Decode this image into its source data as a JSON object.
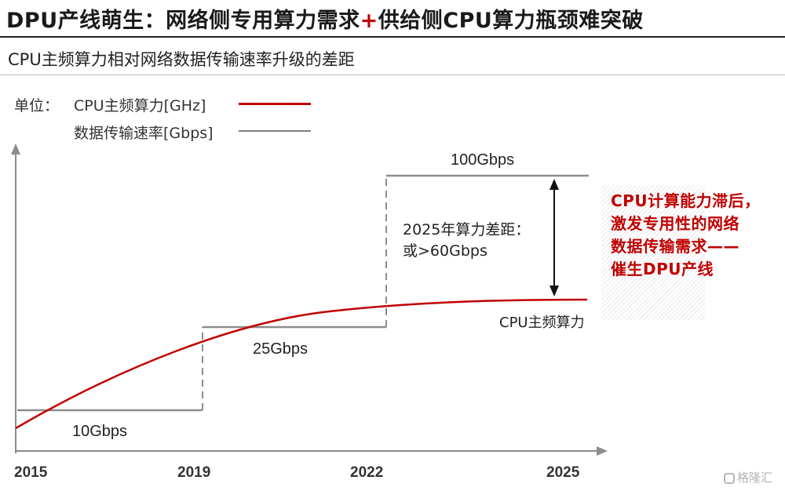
{
  "header": {
    "title_part1": "DPU产线萌生：网络侧专用算力需求",
    "title_plus": "+",
    "title_part2": "供给侧CPU算力瓶颈难突破",
    "subtitle": "CPU主频算力相对网络数据传输速率升级的差距"
  },
  "legend": {
    "unit_prefix": "单位：",
    "items": [
      {
        "label": "CPU主频算力[GHz]",
        "color": "#c00000"
      },
      {
        "label": "数据传输速率[Gbps]",
        "color": "#7f7f7f"
      }
    ]
  },
  "chart_data": {
    "type": "line",
    "x_ticks": [
      "2015",
      "2019",
      "2022",
      "2025"
    ],
    "series": [
      {
        "name": "数据传输速率[Gbps]",
        "shape": "step",
        "color": "#7f7f7f",
        "points": [
          {
            "year": 2015,
            "value": 10
          },
          {
            "year": 2019,
            "value": 25
          },
          {
            "year": 2022,
            "value": 100
          },
          {
            "year": 2025,
            "value": 100
          }
        ],
        "step_labels": [
          "10Gbps",
          "25Gbps",
          "100Gbps"
        ]
      },
      {
        "name": "CPU主频算力",
        "shape": "curve",
        "color": "#c00000",
        "label": "CPU主频算力"
      }
    ],
    "gap_annotation": [
      "2025年算力差距：",
      "或>60Gbps"
    ],
    "callout": [
      "CPU计算能力滞后，",
      "激发专用性的网络",
      "数据传输需求——",
      "催生DPU产线"
    ]
  },
  "watermark": "格隆汇"
}
